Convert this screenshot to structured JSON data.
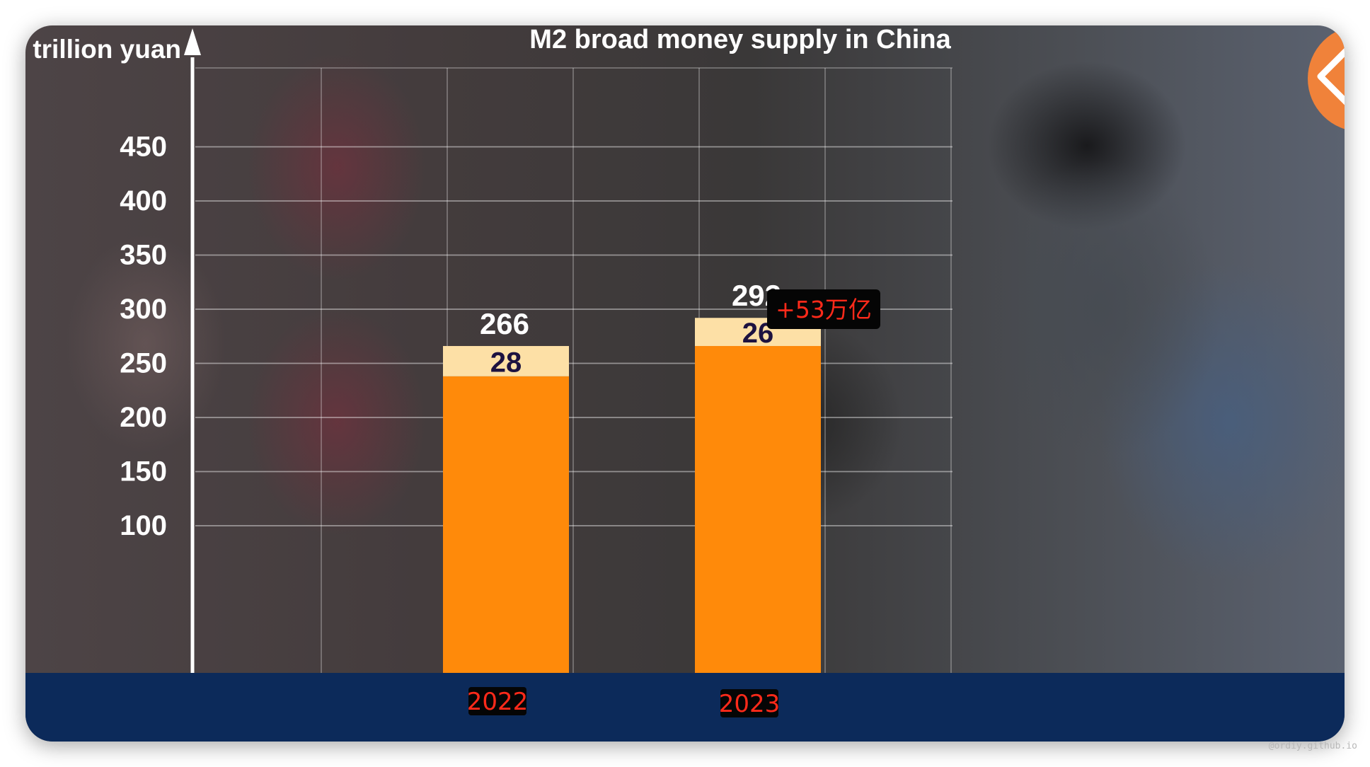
{
  "chart_data": {
    "type": "bar",
    "title": "M2 broad money supply in China",
    "ylabel": "trillion yuan",
    "ylim": [
      50,
      500
    ],
    "yticks": [
      450,
      400,
      350,
      300,
      250,
      200,
      150,
      100
    ],
    "categories": [
      "2022",
      "2023"
    ],
    "totals": [
      266,
      292
    ],
    "series": [
      {
        "values": [
          238,
          266
        ],
        "color": "#ff8a0a"
      },
      {
        "values": [
          28,
          26
        ],
        "color": "#fde0a6"
      }
    ],
    "segment_labels": [
      "28",
      "26"
    ],
    "annotation": "+53万亿",
    "grid": true
  },
  "colors": {
    "bar": "#ff8a0a",
    "bar_top": "#fde0a6",
    "axis": "#ffffff",
    "bottom_bar": "#0c2a5a",
    "annotation_text": "#ff2a1a",
    "back_button": "#f0823a"
  },
  "controls": {
    "back_icon": "chevron-left-icon"
  },
  "watermark": "@ordiy.github.io"
}
